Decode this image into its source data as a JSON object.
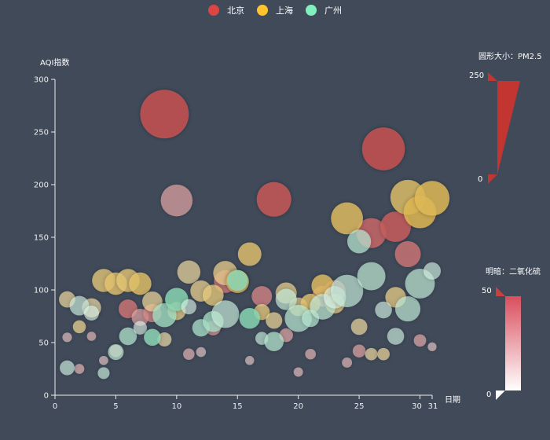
{
  "legend": {
    "items": [
      {
        "label": "北京",
        "color": "#dd4444"
      },
      {
        "label": "上海",
        "color": "#fec42c"
      },
      {
        "label": "广州",
        "color": "#80F1BE"
      }
    ]
  },
  "axes": {
    "y_name": "AQI指数",
    "x_name": "日期",
    "y_ticks": [
      "0",
      "50",
      "100",
      "150",
      "200",
      "250",
      "300"
    ],
    "x_ticks": [
      "0",
      "5",
      "10",
      "15",
      "20",
      "25",
      "30",
      "31"
    ]
  },
  "visual_map_size": {
    "title": "圆形大小：PM2.5",
    "max_label": "250",
    "min_label": "0"
  },
  "visual_map_color": {
    "title": "明暗：二氧化硫",
    "max_label": "50",
    "min_label": "0"
  },
  "chart_data": {
    "type": "scatter",
    "title": "",
    "xlabel": "日期",
    "ylabel": "AQI指数",
    "xlim": [
      0,
      31
    ],
    "ylim": [
      0,
      300
    ],
    "size_dimension": "PM2.5 (0-250)",
    "lightness_dimension": "SO2 (0-50)",
    "legend_position": "top",
    "grid": false,
    "series": [
      {
        "name": "北京",
        "color": "#dd4444",
        "points": [
          {
            "day": 1,
            "aqi": 55,
            "pm25": 9,
            "so2": 6
          },
          {
            "day": 2,
            "aqi": 25,
            "pm25": 11,
            "so2": 9
          },
          {
            "day": 3,
            "aqi": 56,
            "pm25": 7,
            "so2": 9
          },
          {
            "day": 4,
            "aqi": 33,
            "pm25": 7,
            "so2": 5
          },
          {
            "day": 5,
            "aqi": 42,
            "pm25": 24,
            "so2": 12
          },
          {
            "day": 6,
            "aqi": 82,
            "pm25": 58,
            "so2": 30
          },
          {
            "day": 7,
            "aqi": 74,
            "pm25": 49,
            "so2": 16
          },
          {
            "day": 8,
            "aqi": 78,
            "pm25": 55,
            "so2": 24
          },
          {
            "day": 9,
            "aqi": 267,
            "pm25": 216,
            "so2": 42
          },
          {
            "day": 10,
            "aqi": 185,
            "pm25": 127,
            "so2": 16
          },
          {
            "day": 11,
            "aqi": 39,
            "pm25": 19,
            "so2": 11
          },
          {
            "day": 12,
            "aqi": 41,
            "pm25": 11,
            "so2": 4
          },
          {
            "day": 13,
            "aqi": 64,
            "pm25": 38,
            "so2": 19
          },
          {
            "day": 14,
            "aqi": 108,
            "pm25": 79,
            "so2": 28
          },
          {
            "day": 15,
            "aqi": 108,
            "pm25": 63,
            "so2": 26
          },
          {
            "day": 16,
            "aqi": 33,
            "pm25": 6,
            "so2": 4
          },
          {
            "day": 17,
            "aqi": 94,
            "pm25": 66,
            "so2": 25
          },
          {
            "day": 18,
            "aqi": 186,
            "pm25": 142,
            "so2": 40
          },
          {
            "day": 19,
            "aqi": 57,
            "pm25": 31,
            "so2": 14
          },
          {
            "day": 20,
            "aqi": 22,
            "pm25": 8,
            "so2": 7
          },
          {
            "day": 21,
            "aqi": 39,
            "pm25": 15,
            "so2": 10
          },
          {
            "day": 22,
            "aqi": 94,
            "pm25": 69,
            "so2": 21
          },
          {
            "day": 23,
            "aqi": 99,
            "pm25": 73,
            "so2": 24
          },
          {
            "day": 24,
            "aqi": 31,
            "pm25": 12,
            "so2": 9
          },
          {
            "day": 25,
            "aqi": 42,
            "pm25": 27,
            "so2": 16
          },
          {
            "day": 26,
            "aqi": 154,
            "pm25": 117,
            "so2": 34
          },
          {
            "day": 27,
            "aqi": 234,
            "pm25": 185,
            "so2": 42
          },
          {
            "day": 28,
            "aqi": 160,
            "pm25": 120,
            "so2": 38
          },
          {
            "day": 29,
            "aqi": 134,
            "pm25": 96,
            "so2": 30
          },
          {
            "day": 30,
            "aqi": 52,
            "pm25": 24,
            "so2": 14
          },
          {
            "day": 31,
            "aqi": 46,
            "pm25": 5,
            "so2": 5
          }
        ]
      },
      {
        "name": "上海",
        "color": "#fec42c",
        "points": [
          {
            "day": 1,
            "aqi": 91,
            "pm25": 45,
            "so2": 14
          },
          {
            "day": 2,
            "aqi": 65,
            "pm25": 27,
            "so2": 18
          },
          {
            "day": 3,
            "aqi": 83,
            "pm25": 60,
            "so2": 12
          },
          {
            "day": 4,
            "aqi": 109,
            "pm25": 81,
            "so2": 25
          },
          {
            "day": 5,
            "aqi": 106,
            "pm25": 77,
            "so2": 28
          },
          {
            "day": 6,
            "aqi": 109,
            "pm25": 81,
            "so2": 26
          },
          {
            "day": 7,
            "aqi": 106,
            "pm25": 77,
            "so2": 30
          },
          {
            "day": 8,
            "aqi": 89,
            "pm25": 65,
            "so2": 16
          },
          {
            "day": 9,
            "aqi": 53,
            "pm25": 33,
            "so2": 12
          },
          {
            "day": 10,
            "aqi": 80,
            "pm25": 55,
            "so2": 19
          },
          {
            "day": 11,
            "aqi": 117,
            "pm25": 81,
            "so2": 14
          },
          {
            "day": 12,
            "aqi": 99,
            "pm25": 71,
            "so2": 19
          },
          {
            "day": 13,
            "aqi": 95,
            "pm25": 69,
            "so2": 24
          },
          {
            "day": 14,
            "aqi": 116,
            "pm25": 87,
            "so2": 20
          },
          {
            "day": 15,
            "aqi": 108,
            "pm25": 80,
            "so2": 30
          },
          {
            "day": 16,
            "aqi": 134,
            "pm25": 83,
            "so2": 28
          },
          {
            "day": 17,
            "aqi": 79,
            "pm25": 43,
            "so2": 23
          },
          {
            "day": 18,
            "aqi": 71,
            "pm25": 46,
            "so2": 17
          },
          {
            "day": 19,
            "aqi": 97,
            "pm25": 71,
            "so2": 18
          },
          {
            "day": 20,
            "aqi": 84,
            "pm25": 57,
            "so2": 19
          },
          {
            "day": 21,
            "aqi": 87,
            "pm25": 63,
            "so2": 28
          },
          {
            "day": 22,
            "aqi": 104,
            "pm25": 77,
            "so2": 32
          },
          {
            "day": 23,
            "aqi": 87,
            "pm25": 62,
            "so2": 22
          },
          {
            "day": 24,
            "aqi": 168,
            "pm25": 128,
            "so2": 32
          },
          {
            "day": 25,
            "aqi": 65,
            "pm25": 45,
            "so2": 14
          },
          {
            "day": 26,
            "aqi": 39,
            "pm25": 24,
            "so2": 14
          },
          {
            "day": 27,
            "aqi": 39,
            "pm25": 24,
            "so2": 16
          },
          {
            "day": 28,
            "aqi": 93,
            "pm25": 68,
            "so2": 21
          },
          {
            "day": 29,
            "aqi": 188,
            "pm25": 143,
            "so2": 30
          },
          {
            "day": 30,
            "aqi": 174,
            "pm25": 131,
            "so2": 36
          },
          {
            "day": 31,
            "aqi": 187,
            "pm25": 143,
            "so2": 35
          }
        ]
      },
      {
        "name": "广州",
        "color": "#80F1BE",
        "points": [
          {
            "day": 1,
            "aqi": 26,
            "pm25": 37,
            "so2": 8
          },
          {
            "day": 2,
            "aqi": 85,
            "pm25": 62,
            "so2": 9
          },
          {
            "day": 3,
            "aqi": 78,
            "pm25": 38,
            "so2": 5
          },
          {
            "day": 4,
            "aqi": 21,
            "pm25": 21,
            "so2": 11
          },
          {
            "day": 5,
            "aqi": 41,
            "pm25": 42,
            "so2": 14
          },
          {
            "day": 6,
            "aqi": 56,
            "pm25": 52,
            "so2": 20
          },
          {
            "day": 7,
            "aqi": 64,
            "pm25": 30,
            "so2": 3
          },
          {
            "day": 8,
            "aqi": 55,
            "pm25": 48,
            "so2": 35
          },
          {
            "day": 9,
            "aqi": 76,
            "pm25": 85,
            "so2": 27
          },
          {
            "day": 10,
            "aqi": 91,
            "pm25": 81,
            "so2": 37
          },
          {
            "day": 11,
            "aqi": 84,
            "pm25": 39,
            "so2": 5
          },
          {
            "day": 12,
            "aqi": 64,
            "pm25": 51,
            "so2": 23
          },
          {
            "day": 13,
            "aqi": 70,
            "pm25": 69,
            "so2": 25
          },
          {
            "day": 14,
            "aqi": 77,
            "pm25": 105,
            "so2": 11
          },
          {
            "day": 15,
            "aqi": 109,
            "pm25": 68,
            "so2": 37
          },
          {
            "day": 16,
            "aqi": 73,
            "pm25": 68,
            "so2": 38
          },
          {
            "day": 17,
            "aqi": 54,
            "pm25": 27,
            "so2": 11
          },
          {
            "day": 18,
            "aqi": 51,
            "pm25": 61,
            "so2": 19
          },
          {
            "day": 19,
            "aqi": 91,
            "pm25": 71,
            "so2": 12
          },
          {
            "day": 20,
            "aqi": 73,
            "pm25": 102,
            "so2": 17
          },
          {
            "day": 21,
            "aqi": 73,
            "pm25": 50,
            "so2": 18
          },
          {
            "day": 22,
            "aqi": 84,
            "pm25": 94,
            "so2": 15
          },
          {
            "day": 23,
            "aqi": 93,
            "pm25": 77,
            "so2": 5
          },
          {
            "day": 24,
            "aqi": 99,
            "pm25": 130,
            "so2": 12
          },
          {
            "day": 25,
            "aqi": 146,
            "pm25": 84,
            "so2": 17
          },
          {
            "day": 26,
            "aqi": 113,
            "pm25": 108,
            "so2": 15
          },
          {
            "day": 27,
            "aqi": 81,
            "pm25": 48,
            "so2": 7
          },
          {
            "day": 28,
            "aqi": 56,
            "pm25": 48,
            "so2": 9
          },
          {
            "day": 29,
            "aqi": 82,
            "pm25": 92,
            "so2": 14
          },
          {
            "day": 30,
            "aqi": 106,
            "pm25": 116,
            "so2": 15
          },
          {
            "day": 31,
            "aqi": 118,
            "pm25": 50,
            "so2": 8
          }
        ]
      }
    ]
  }
}
